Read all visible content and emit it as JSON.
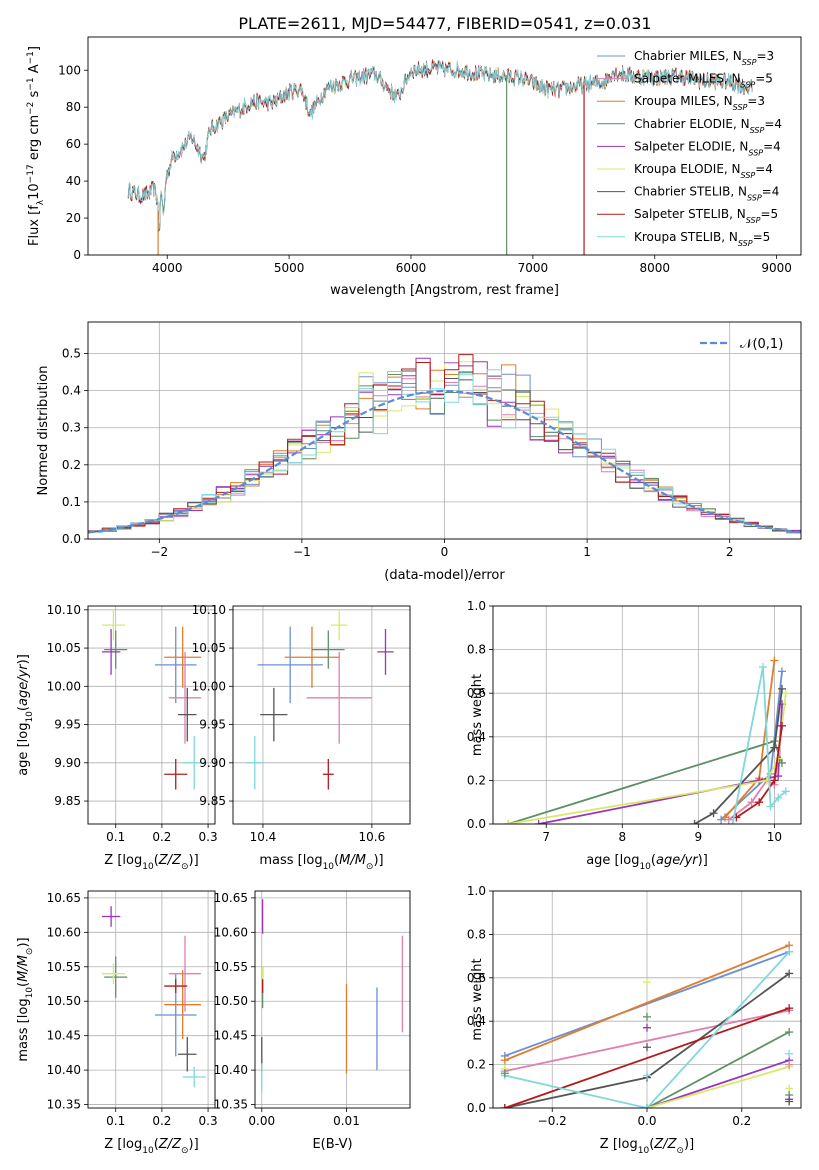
{
  "figure": {
    "title": "PLATE=2611, MJD=54477, FIBERID=0541, z=0.031"
  },
  "colors": {
    "chabrier_miles": "#6b8fd6",
    "salpeter_miles": "#e07fb0",
    "kroupa_miles": "#e07d2a",
    "chabrier_elodie": "#5f8f66",
    "salpeter_elodie": "#9a35b8",
    "kroupa_elodie": "#d9e86b",
    "chabrier_stelib": "#555555",
    "salpeter_stelib": "#b31b1b",
    "kroupa_stelib": "#7fd8dc",
    "normal": "#5b8bd6"
  },
  "chart_data": [
    {
      "type": "line",
      "panel": "spectrum",
      "xlabel": "wavelength [Angstrom, rest frame]",
      "ylabel": "Flux [f_λ10^-17 erg cm^-2 s^-1 A^-1]",
      "xlim": [
        3350,
        9200
      ],
      "ylim": [
        0,
        118
      ],
      "xticks": [
        "4000",
        "5000",
        "6000",
        "7000",
        "8000",
        "9000"
      ],
      "yticks": [
        "0",
        "20",
        "40",
        "60",
        "80",
        "100"
      ],
      "grid": false,
      "legend": "top-right",
      "legend_entries": [
        {
          "key": "chabrier_miles",
          "prefix": "Chabrier MILES, N",
          "sub": "SSP",
          "suffix": "=3"
        },
        {
          "key": "salpeter_miles",
          "prefix": "Salpeter MILES, N",
          "sub": "SSP",
          "suffix": "=5"
        },
        {
          "key": "kroupa_miles",
          "prefix": "Kroupa MILES, N",
          "sub": "SSP",
          "suffix": "=3"
        },
        {
          "key": "chabrier_elodie",
          "prefix": "Chabrier ELODIE, N",
          "sub": "SSP",
          "suffix": "=4"
        },
        {
          "key": "salpeter_elodie",
          "prefix": "Salpeter ELODIE, N",
          "sub": "SSP",
          "suffix": "=4"
        },
        {
          "key": "kroupa_elodie",
          "prefix": "Kroupa ELODIE, N",
          "sub": "SSP",
          "suffix": "=4"
        },
        {
          "key": "chabrier_stelib",
          "prefix": "Chabrier STELIB, N",
          "sub": "SSP",
          "suffix": "=4"
        },
        {
          "key": "salpeter_stelib",
          "prefix": "Salpeter STELIB, N",
          "sub": "SSP",
          "suffix": "=5"
        },
        {
          "key": "kroupa_stelib",
          "prefix": "Kroupa STELIB, N",
          "sub": "SSP",
          "suffix": "=5"
        }
      ],
      "continuum": [
        [
          3680,
          35
        ],
        [
          3780,
          32
        ],
        [
          3850,
          33
        ],
        [
          3890,
          36
        ],
        [
          3920,
          30
        ],
        [
          3935,
          12
        ],
        [
          3950,
          36
        ],
        [
          3970,
          20
        ],
        [
          3990,
          42
        ],
        [
          4050,
          54
        ],
        [
          4100,
          56
        ],
        [
          4200,
          64
        ],
        [
          4300,
          52
        ],
        [
          4350,
          68
        ],
        [
          4500,
          75
        ],
        [
          4700,
          83
        ],
        [
          4860,
          82
        ],
        [
          5000,
          88
        ],
        [
          5100,
          90
        ],
        [
          5175,
          76
        ],
        [
          5300,
          90
        ],
        [
          5500,
          95
        ],
        [
          5700,
          98
        ],
        [
          5890,
          85
        ],
        [
          6000,
          100
        ],
        [
          6200,
          101
        ],
        [
          6400,
          100
        ],
        [
          6563,
          98
        ],
        [
          6700,
          97
        ],
        [
          6900,
          96
        ],
        [
          7100,
          90
        ],
        [
          7200,
          89
        ],
        [
          7400,
          92
        ],
        [
          7600,
          94
        ],
        [
          7650,
          99
        ],
        [
          7800,
          97
        ],
        [
          8000,
          96
        ],
        [
          8200,
          97
        ],
        [
          8400,
          94
        ],
        [
          8600,
          94
        ],
        [
          8800,
          90
        ]
      ],
      "spikes": [
        {
          "x": 3925,
          "y": 0,
          "series": "kroupa_miles"
        },
        {
          "x": 6785,
          "y": 0,
          "series": "chabrier_elodie"
        },
        {
          "x": 7420,
          "y": 0,
          "series": "salpeter_stelib"
        }
      ]
    },
    {
      "type": "histogram",
      "panel": "residuals",
      "xlabel": "(data-model)/error",
      "ylabel": "Normed distribution",
      "xlim": [
        -2.5,
        2.5
      ],
      "ylim": [
        0,
        0.585
      ],
      "xticks": [
        "-2",
        "-1",
        "0",
        "1",
        "2"
      ],
      "yticks": [
        "0.0",
        "0.1",
        "0.2",
        "0.3",
        "0.4",
        "0.5"
      ],
      "grid": true,
      "legend": "top-right",
      "legend_label": "𝒩(0,1)",
      "bin_width": 0.1,
      "normal_curve": {
        "mean": 0,
        "sigma": 1
      }
    },
    {
      "type": "scatter",
      "panel": "age_vs_Z",
      "xlabel": "Z [log10(Z/Z⊙)]",
      "ylabel": "age [log10(age/yr)]",
      "xlim": [
        0.04,
        0.315
      ],
      "ylim": [
        9.82,
        10.105
      ],
      "xticks": [
        "0.1",
        "0.2",
        "0.3"
      ],
      "yticks": [
        "9.85",
        "9.90",
        "9.95",
        "10.00",
        "10.05",
        "10.10"
      ],
      "grid": true,
      "points": [
        {
          "series": "chabrier_miles",
          "x": 0.23,
          "y": 10.028,
          "xerr": 0.045,
          "yerr": 0.05
        },
        {
          "series": "salpeter_miles",
          "x": 0.25,
          "y": 9.985,
          "xerr": 0.035,
          "yerr": 0.06
        },
        {
          "series": "kroupa_miles",
          "x": 0.245,
          "y": 10.038,
          "xerr": 0.04,
          "yerr": 0.04
        },
        {
          "series": "chabrier_elodie",
          "x": 0.1,
          "y": 10.048,
          "xerr": 0.025,
          "yerr": 0.025
        },
        {
          "series": "salpeter_elodie",
          "x": 0.09,
          "y": 10.045,
          "xerr": 0.02,
          "yerr": 0.03
        },
        {
          "series": "kroupa_elodie",
          "x": 0.095,
          "y": 10.08,
          "xerr": 0.025,
          "yerr": 0.02
        },
        {
          "series": "chabrier_stelib",
          "x": 0.255,
          "y": 9.963,
          "xerr": 0.02,
          "yerr": 0.035
        },
        {
          "series": "salpeter_stelib",
          "x": 0.23,
          "y": 9.885,
          "xerr": 0.025,
          "yerr": 0.02
        },
        {
          "series": "kroupa_stelib",
          "x": 0.27,
          "y": 9.9,
          "xerr": 0.025,
          "yerr": 0.035
        }
      ]
    },
    {
      "type": "scatter",
      "panel": "age_vs_mass",
      "xlabel": "mass [log10(M/M⊙)]",
      "ylabel": "",
      "xlim": [
        10.345,
        10.67
      ],
      "ylim": [
        9.82,
        10.105
      ],
      "xticks": [
        "10.4",
        "10.6"
      ],
      "yticks": [
        "9.85",
        "9.90",
        "9.95",
        "10.00",
        "10.05",
        "10.10"
      ],
      "grid": true,
      "points": [
        {
          "series": "chabrier_miles",
          "x": 10.45,
          "y": 10.028,
          "xerr": 0.06,
          "yerr": 0.05
        },
        {
          "series": "salpeter_miles",
          "x": 10.54,
          "y": 9.985,
          "xerr": 0.06,
          "yerr": 0.06
        },
        {
          "series": "kroupa_miles",
          "x": 10.49,
          "y": 10.038,
          "xerr": 0.05,
          "yerr": 0.04
        },
        {
          "series": "chabrier_elodie",
          "x": 10.52,
          "y": 10.048,
          "xerr": 0.03,
          "yerr": 0.025
        },
        {
          "series": "salpeter_elodie",
          "x": 10.625,
          "y": 10.045,
          "xerr": 0.015,
          "yerr": 0.03
        },
        {
          "series": "kroupa_elodie",
          "x": 10.54,
          "y": 10.08,
          "xerr": 0.015,
          "yerr": 0.02
        },
        {
          "series": "chabrier_stelib",
          "x": 10.42,
          "y": 9.963,
          "xerr": 0.025,
          "yerr": 0.035
        },
        {
          "series": "salpeter_stelib",
          "x": 10.52,
          "y": 9.885,
          "xerr": 0.01,
          "yerr": 0.02
        },
        {
          "series": "kroupa_stelib",
          "x": 10.385,
          "y": 9.9,
          "xerr": 0.015,
          "yerr": 0.035
        }
      ]
    },
    {
      "type": "line",
      "panel": "mass_weight_vs_age",
      "xlabel": "age [log10(age/yr)]",
      "ylabel": "mass weight",
      "xlim": [
        6.3,
        10.35
      ],
      "ylim": [
        0,
        1
      ],
      "xticks": [
        "7",
        "8",
        "9",
        "10"
      ],
      "yticks": [
        "0.0",
        "0.2",
        "0.4",
        "0.6",
        "0.8",
        "1.0"
      ],
      "grid": true,
      "series": [
        {
          "key": "chabrier_miles",
          "points": [
            [
              9.3,
              0.02
            ],
            [
              9.95,
              0.23
            ],
            [
              10.1,
              0.7
            ]
          ]
        },
        {
          "key": "salpeter_miles",
          "points": [
            [
              9.4,
              0.02
            ],
            [
              9.7,
              0.1
            ],
            [
              9.9,
              0.2
            ],
            [
              10.0,
              0.18
            ],
            [
              10.1,
              0.45
            ]
          ]
        },
        {
          "key": "kroupa_miles",
          "points": [
            [
              9.35,
              0.03
            ],
            [
              9.8,
              0.21
            ],
            [
              10.0,
              0.75
            ]
          ]
        },
        {
          "key": "chabrier_elodie",
          "points": [
            [
              6.5,
              0.0
            ],
            [
              10.0,
              0.38
            ],
            [
              10.1,
              0.28
            ]
          ]
        },
        {
          "key": "salpeter_elodie",
          "points": [
            [
              6.9,
              0.0
            ],
            [
              9.8,
              0.2
            ],
            [
              10.05,
              0.22
            ],
            [
              10.1,
              0.55
            ]
          ]
        },
        {
          "key": "kroupa_elodie",
          "points": [
            [
              6.5,
              0.0
            ],
            [
              9.9,
              0.2
            ],
            [
              10.05,
              0.3
            ],
            [
              10.15,
              0.6
            ]
          ]
        },
        {
          "key": "chabrier_stelib",
          "points": [
            [
              8.95,
              0.0
            ],
            [
              9.2,
              0.05
            ],
            [
              10.0,
              0.35
            ],
            [
              10.1,
              0.62
            ]
          ]
        },
        {
          "key": "salpeter_stelib",
          "points": [
            [
              9.5,
              0.03
            ],
            [
              9.8,
              0.1
            ],
            [
              10.0,
              0.2
            ],
            [
              10.1,
              0.45
            ]
          ]
        },
        {
          "key": "kroupa_stelib",
          "points": [
            [
              9.45,
              0.0
            ],
            [
              9.85,
              0.72
            ],
            [
              9.95,
              0.08
            ],
            [
              10.05,
              0.12
            ],
            [
              10.15,
              0.15
            ]
          ]
        }
      ]
    },
    {
      "type": "scatter",
      "panel": "mass_vs_Z",
      "xlabel": "Z [log10(Z/Z⊙)]",
      "ylabel": "mass [log10(M/M⊙)]",
      "xlim": [
        0.04,
        0.315
      ],
      "ylim": [
        10.345,
        10.66
      ],
      "xticks": [
        "0.1",
        "0.2",
        "0.3"
      ],
      "yticks": [
        "10.35",
        "10.40",
        "10.45",
        "10.50",
        "10.55",
        "10.60",
        "10.65"
      ],
      "grid": true,
      "points": [
        {
          "series": "chabrier_miles",
          "x": 0.23,
          "y": 10.48,
          "xerr": 0.045,
          "yerr": 0.06
        },
        {
          "series": "salpeter_miles",
          "x": 0.25,
          "y": 10.54,
          "xerr": 0.035,
          "yerr": 0.055
        },
        {
          "series": "kroupa_miles",
          "x": 0.245,
          "y": 10.495,
          "xerr": 0.04,
          "yerr": 0.05
        },
        {
          "series": "chabrier_elodie",
          "x": 0.1,
          "y": 10.535,
          "xerr": 0.025,
          "yerr": 0.03
        },
        {
          "series": "salpeter_elodie",
          "x": 0.09,
          "y": 10.623,
          "xerr": 0.02,
          "yerr": 0.015
        },
        {
          "series": "kroupa_elodie",
          "x": 0.095,
          "y": 10.54,
          "xerr": 0.025,
          "yerr": 0.015
        },
        {
          "series": "chabrier_stelib",
          "x": 0.255,
          "y": 10.423,
          "xerr": 0.02,
          "yerr": 0.025
        },
        {
          "series": "salpeter_stelib",
          "x": 0.23,
          "y": 10.522,
          "xerr": 0.025,
          "yerr": 0.01
        },
        {
          "series": "kroupa_stelib",
          "x": 0.27,
          "y": 10.39,
          "xerr": 0.025,
          "yerr": 0.015
        }
      ]
    },
    {
      "type": "scatter",
      "panel": "mass_vs_ebv",
      "xlabel": "E(B-V)",
      "ylabel": "",
      "xlim": [
        -0.0008,
        0.0175
      ],
      "ylim": [
        10.345,
        10.66
      ],
      "xticks": [
        "0.00",
        "0.01"
      ],
      "yticks": [
        "10.35",
        "10.40",
        "10.45",
        "10.50",
        "10.55",
        "10.60",
        "10.65"
      ],
      "grid": true,
      "points": [
        {
          "series": "chabrier_miles",
          "x": 0.0136,
          "y": 10.46,
          "xerr": 0,
          "yerr": 0.06
        },
        {
          "series": "salpeter_miles",
          "x": 0.0166,
          "y": 10.525,
          "xerr": 0,
          "yerr": 0.07
        },
        {
          "series": "kroupa_miles",
          "x": 0.01,
          "y": 10.46,
          "xerr": 0,
          "yerr": 0.065
        },
        {
          "series": "chabrier_elodie",
          "x": 0.0001,
          "y": 10.52,
          "xerr": 0,
          "yerr": 0.03
        },
        {
          "series": "salpeter_elodie",
          "x": 0.0001,
          "y": 10.623,
          "xerr": 0,
          "yerr": 0.025
        },
        {
          "series": "kroupa_elodie",
          "x": 0.0001,
          "y": 10.54,
          "xerr": 0,
          "yerr": 0.01
        },
        {
          "series": "chabrier_stelib",
          "x": 0.0,
          "y": 10.423,
          "xerr": 0,
          "yerr": 0.025
        },
        {
          "series": "salpeter_stelib",
          "x": 0.0001,
          "y": 10.522,
          "xerr": 0,
          "yerr": 0.01
        },
        {
          "series": "kroupa_stelib",
          "x": 0.0,
          "y": 10.39,
          "xerr": 0,
          "yerr": 0.02
        }
      ]
    },
    {
      "type": "line",
      "panel": "mass_weight_vs_Z",
      "xlabel": "Z [log10(Z/Z⊙)]",
      "ylabel": "mass weight",
      "xlim": [
        -0.325,
        0.325
      ],
      "ylim": [
        0,
        1
      ],
      "xticks": [
        "-0.2",
        "0.0",
        "0.2"
      ],
      "yticks": [
        "0.0",
        "0.2",
        "0.4",
        "0.6",
        "0.8",
        "1.0"
      ],
      "grid": true,
      "series": [
        {
          "key": "chabrier_miles",
          "points": [
            [
              -0.3,
              0.24
            ],
            [
              0.3,
              0.72
            ]
          ]
        },
        {
          "key": "salpeter_miles",
          "points": [
            [
              -0.3,
              0.17
            ],
            [
              0.3,
              0.45
            ]
          ]
        },
        {
          "key": "kroupa_miles",
          "points": [
            [
              -0.3,
              0.22
            ],
            [
              0.3,
              0.75
            ]
          ]
        },
        {
          "key": "chabrier_elodie",
          "points": [
            [
              0.0,
              0.0
            ],
            [
              0.3,
              0.35
            ]
          ]
        },
        {
          "key": "salpeter_elodie",
          "points": [
            [
              0.0,
              0.0
            ],
            [
              0.3,
              0.22
            ]
          ]
        },
        {
          "key": "kroupa_elodie",
          "points": [
            [
              0.0,
              0.0
            ],
            [
              0.3,
              0.19
            ]
          ]
        },
        {
          "key": "chabrier_stelib",
          "points": [
            [
              -0.3,
              0.0
            ],
            [
              0.0,
              0.14
            ],
            [
              0.3,
              0.62
            ]
          ]
        },
        {
          "key": "salpeter_stelib",
          "points": [
            [
              -0.3,
              0.0
            ],
            [
              0.3,
              0.46
            ]
          ]
        },
        {
          "key": "kroupa_stelib",
          "points": [
            [
              -0.3,
              0.15
            ],
            [
              0.0,
              0.0
            ],
            [
              0.3,
              0.72
            ]
          ]
        }
      ],
      "stacked_markers": [
        {
          "x": 0.0,
          "values": [
            0.58,
            0.42,
            0.37,
            0.28,
            0.15
          ]
        },
        {
          "x": 0.3,
          "values": [
            0.09,
            0.06,
            0.04,
            0.03,
            0.25,
            0.2
          ]
        },
        {
          "x": -0.3,
          "values": [
            0.18,
            0.16
          ]
        }
      ]
    }
  ]
}
